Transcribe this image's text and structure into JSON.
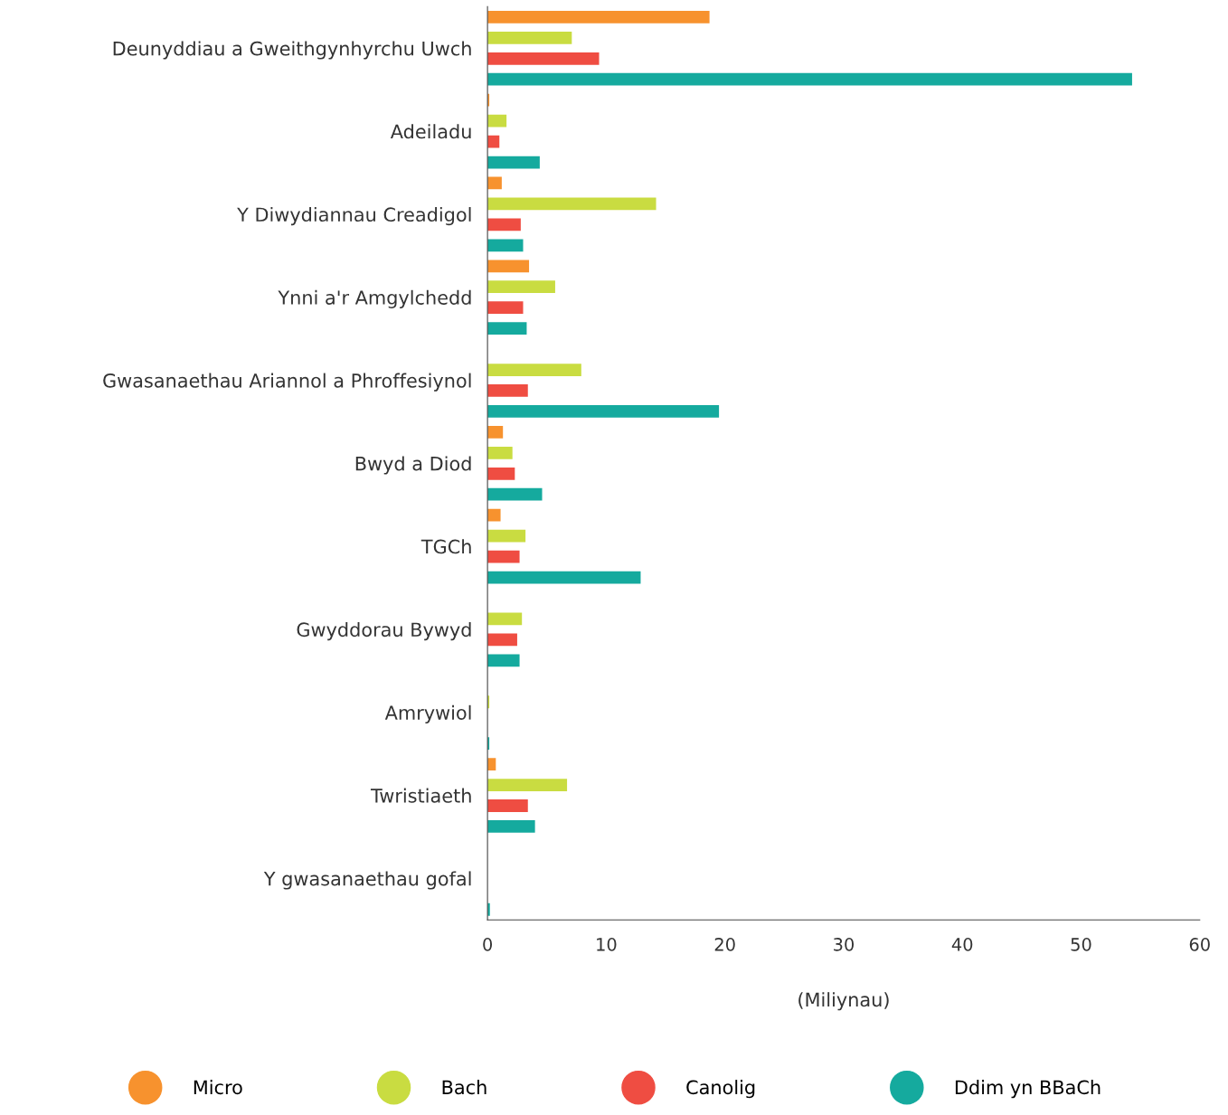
{
  "chart_data": {
    "type": "bar",
    "orientation": "horizontal",
    "xlabel": "(Miliynau)",
    "categories": [
      "Deunyddiau a Gweithgynhyrchu Uwch",
      "Adeiladu",
      "Y Diwydiannau Creadigol",
      "Ynni a'r Amgylchedd",
      "Gwasanaethau Ariannol a Phroffesiynol",
      "Bwyd a Diod",
      "TGCh",
      "Gwyddorau Bywyd",
      "Amrywiol",
      "Twristiaeth",
      "Y gwasanaethau gofal"
    ],
    "series": [
      {
        "name": "Micro",
        "color": "#f7922e",
        "values": [
          18.7,
          0.15,
          1.2,
          3.5,
          0,
          1.3,
          1.1,
          0,
          0,
          0.7,
          0
        ]
      },
      {
        "name": "Bach",
        "color": "#c9dc41",
        "values": [
          7.1,
          1.6,
          14.2,
          5.7,
          7.9,
          2.1,
          3.2,
          2.9,
          0.15,
          6.7,
          0
        ]
      },
      {
        "name": "Canolig",
        "color": "#ef4d42",
        "values": [
          9.4,
          1.0,
          2.8,
          3.0,
          3.4,
          2.3,
          2.7,
          2.5,
          0,
          3.4,
          0
        ]
      },
      {
        "name": "Ddim yn BBaCh",
        "color": "#15aa9e",
        "values": [
          54.3,
          4.4,
          3.0,
          3.3,
          19.5,
          4.6,
          12.9,
          2.7,
          0.15,
          4.0,
          0.2
        ]
      }
    ],
    "xlim": [
      0,
      60
    ],
    "xticks": [
      0,
      10,
      20,
      30,
      40,
      50,
      60
    ],
    "grid": false,
    "legend": "bottom"
  }
}
